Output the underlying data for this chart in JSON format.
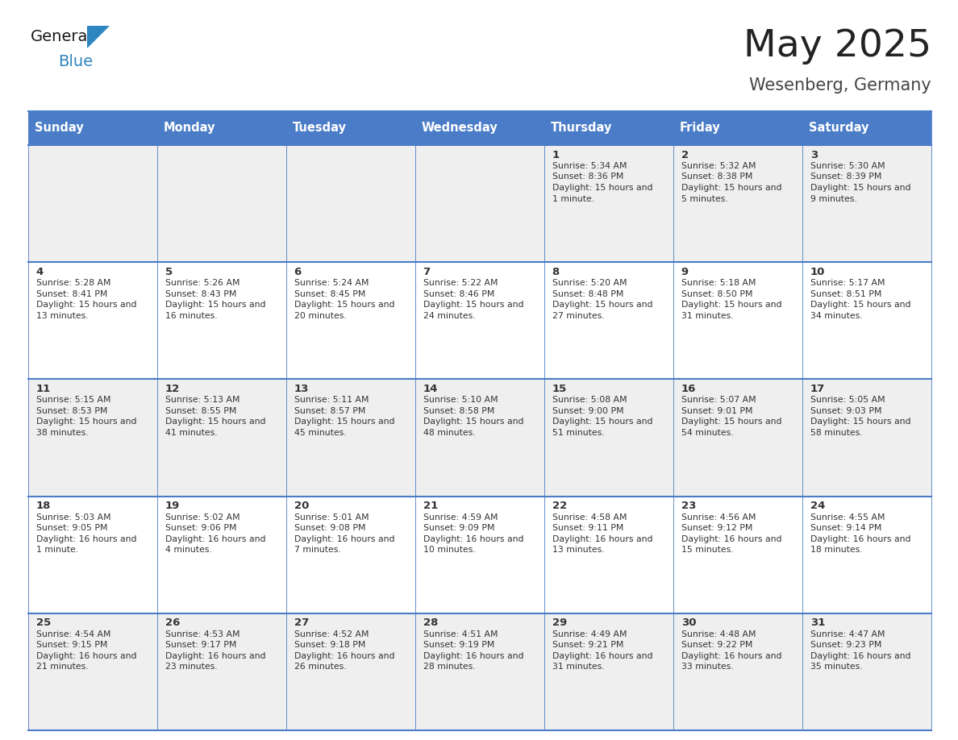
{
  "title": "May 2025",
  "subtitle": "Wesenberg, Germany",
  "header_bg": "#4a7cc7",
  "header_text_color": "#ffffff",
  "header_days": [
    "Sunday",
    "Monday",
    "Tuesday",
    "Wednesday",
    "Thursday",
    "Friday",
    "Saturday"
  ],
  "row1_bg": "#efefef",
  "row2_bg": "#ffffff",
  "cell_text_color": "#333333",
  "grid_color": "#4a7cc7",
  "title_color": "#222222",
  "subtitle_color": "#444444",
  "general_color": "#1a1a1a",
  "blue_color": "#2e86c1",
  "calendar": [
    [
      null,
      null,
      null,
      null,
      {
        "day": 1,
        "sunrise": "5:34 AM",
        "sunset": "8:36 PM",
        "daylight": "15 hours and 1 minute."
      },
      {
        "day": 2,
        "sunrise": "5:32 AM",
        "sunset": "8:38 PM",
        "daylight": "15 hours and 5 minutes."
      },
      {
        "day": 3,
        "sunrise": "5:30 AM",
        "sunset": "8:39 PM",
        "daylight": "15 hours and 9 minutes."
      }
    ],
    [
      {
        "day": 4,
        "sunrise": "5:28 AM",
        "sunset": "8:41 PM",
        "daylight": "15 hours and 13 minutes."
      },
      {
        "day": 5,
        "sunrise": "5:26 AM",
        "sunset": "8:43 PM",
        "daylight": "15 hours and 16 minutes."
      },
      {
        "day": 6,
        "sunrise": "5:24 AM",
        "sunset": "8:45 PM",
        "daylight": "15 hours and 20 minutes."
      },
      {
        "day": 7,
        "sunrise": "5:22 AM",
        "sunset": "8:46 PM",
        "daylight": "15 hours and 24 minutes."
      },
      {
        "day": 8,
        "sunrise": "5:20 AM",
        "sunset": "8:48 PM",
        "daylight": "15 hours and 27 minutes."
      },
      {
        "day": 9,
        "sunrise": "5:18 AM",
        "sunset": "8:50 PM",
        "daylight": "15 hours and 31 minutes."
      },
      {
        "day": 10,
        "sunrise": "5:17 AM",
        "sunset": "8:51 PM",
        "daylight": "15 hours and 34 minutes."
      }
    ],
    [
      {
        "day": 11,
        "sunrise": "5:15 AM",
        "sunset": "8:53 PM",
        "daylight": "15 hours and 38 minutes."
      },
      {
        "day": 12,
        "sunrise": "5:13 AM",
        "sunset": "8:55 PM",
        "daylight": "15 hours and 41 minutes."
      },
      {
        "day": 13,
        "sunrise": "5:11 AM",
        "sunset": "8:57 PM",
        "daylight": "15 hours and 45 minutes."
      },
      {
        "day": 14,
        "sunrise": "5:10 AM",
        "sunset": "8:58 PM",
        "daylight": "15 hours and 48 minutes."
      },
      {
        "day": 15,
        "sunrise": "5:08 AM",
        "sunset": "9:00 PM",
        "daylight": "15 hours and 51 minutes."
      },
      {
        "day": 16,
        "sunrise": "5:07 AM",
        "sunset": "9:01 PM",
        "daylight": "15 hours and 54 minutes."
      },
      {
        "day": 17,
        "sunrise": "5:05 AM",
        "sunset": "9:03 PM",
        "daylight": "15 hours and 58 minutes."
      }
    ],
    [
      {
        "day": 18,
        "sunrise": "5:03 AM",
        "sunset": "9:05 PM",
        "daylight": "16 hours and 1 minute."
      },
      {
        "day": 19,
        "sunrise": "5:02 AM",
        "sunset": "9:06 PM",
        "daylight": "16 hours and 4 minutes."
      },
      {
        "day": 20,
        "sunrise": "5:01 AM",
        "sunset": "9:08 PM",
        "daylight": "16 hours and 7 minutes."
      },
      {
        "day": 21,
        "sunrise": "4:59 AM",
        "sunset": "9:09 PM",
        "daylight": "16 hours and 10 minutes."
      },
      {
        "day": 22,
        "sunrise": "4:58 AM",
        "sunset": "9:11 PM",
        "daylight": "16 hours and 13 minutes."
      },
      {
        "day": 23,
        "sunrise": "4:56 AM",
        "sunset": "9:12 PM",
        "daylight": "16 hours and 15 minutes."
      },
      {
        "day": 24,
        "sunrise": "4:55 AM",
        "sunset": "9:14 PM",
        "daylight": "16 hours and 18 minutes."
      }
    ],
    [
      {
        "day": 25,
        "sunrise": "4:54 AM",
        "sunset": "9:15 PM",
        "daylight": "16 hours and 21 minutes."
      },
      {
        "day": 26,
        "sunrise": "4:53 AM",
        "sunset": "9:17 PM",
        "daylight": "16 hours and 23 minutes."
      },
      {
        "day": 27,
        "sunrise": "4:52 AM",
        "sunset": "9:18 PM",
        "daylight": "16 hours and 26 minutes."
      },
      {
        "day": 28,
        "sunrise": "4:51 AM",
        "sunset": "9:19 PM",
        "daylight": "16 hours and 28 minutes."
      },
      {
        "day": 29,
        "sunrise": "4:49 AM",
        "sunset": "9:21 PM",
        "daylight": "16 hours and 31 minutes."
      },
      {
        "day": 30,
        "sunrise": "4:48 AM",
        "sunset": "9:22 PM",
        "daylight": "16 hours and 33 minutes."
      },
      {
        "day": 31,
        "sunrise": "4:47 AM",
        "sunset": "9:23 PM",
        "daylight": "16 hours and 35 minutes."
      }
    ]
  ]
}
